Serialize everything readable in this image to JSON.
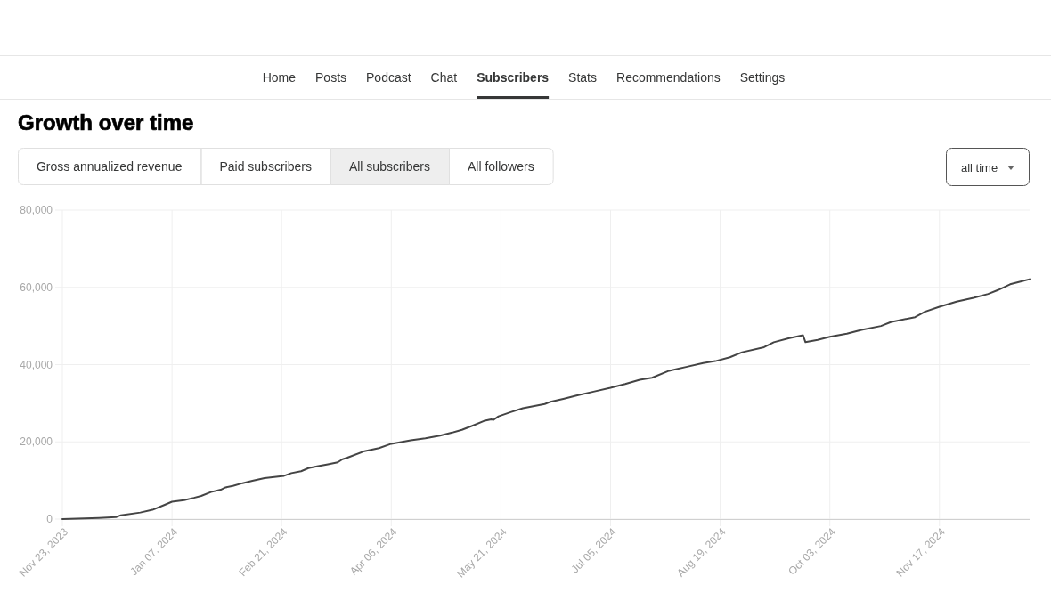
{
  "chart_data": {
    "type": "line",
    "title": "Growth over time",
    "annotations": [
      "Home",
      "Posts",
      "Podcast",
      "Chat",
      "Subscribers",
      "Stats",
      "Recommendations",
      "Settings",
      "Gross annualized revenue",
      "Paid subscribers",
      "All subscribers",
      "All followers",
      "all time"
    ],
    "x": [
      "2023-11-23",
      "2023-12-08",
      "2023-12-15",
      "2023-12-17",
      "2023-12-25",
      "2023-12-30",
      "2024-01-04",
      "2024-01-07",
      "2024-01-12",
      "2024-01-16",
      "2024-01-19",
      "2024-01-23",
      "2024-01-27",
      "2024-01-29",
      "2024-02-01",
      "2024-02-05",
      "2024-02-09",
      "2024-02-14",
      "2024-02-18",
      "2024-02-22",
      "2024-02-25",
      "2024-02-29",
      "2024-03-03",
      "2024-03-07",
      "2024-03-11",
      "2024-03-15",
      "2024-03-17",
      "2024-03-19",
      "2024-03-26",
      "2024-04-01",
      "2024-04-06",
      "2024-04-14",
      "2024-04-20",
      "2024-04-26",
      "2024-05-01",
      "2024-05-05",
      "2024-05-09",
      "2024-05-14",
      "2024-05-17",
      "2024-05-18",
      "2024-05-20",
      "2024-05-25",
      "2024-05-30",
      "2024-06-08",
      "2024-06-10",
      "2024-06-16",
      "2024-06-21",
      "2024-06-28",
      "2024-07-05",
      "2024-07-11",
      "2024-07-17",
      "2024-07-22",
      "2024-07-29",
      "2024-08-05",
      "2024-08-12",
      "2024-08-17",
      "2024-08-23",
      "2024-08-28",
      "2024-09-06",
      "2024-09-10",
      "2024-09-16",
      "2024-09-22",
      "2024-09-23",
      "2024-09-28",
      "2024-10-03",
      "2024-10-10",
      "2024-10-16",
      "2024-10-24",
      "2024-10-28",
      "2024-11-07",
      "2024-11-11",
      "2024-11-17",
      "2024-11-24",
      "2024-12-01",
      "2024-12-07",
      "2024-12-11",
      "2024-12-16",
      "2024-12-21",
      "2024-12-24"
    ],
    "series": [
      {
        "color": "#444444",
        "values": [
          0,
          300,
          500,
          1000,
          1700,
          2400,
          3700,
          4500,
          4900,
          5500,
          6000,
          7000,
          7600,
          8200,
          8600,
          9300,
          9900,
          10600,
          10900,
          11200,
          11900,
          12400,
          13200,
          13700,
          14200,
          14700,
          15500,
          15900,
          17600,
          18400,
          19500,
          20400,
          20900,
          21600,
          22400,
          23100,
          24100,
          25400,
          25800,
          25700,
          26600,
          27700,
          28700,
          29800,
          30300,
          31200,
          32000,
          33000,
          34000,
          35000,
          36100,
          36600,
          38400,
          39400,
          40400,
          40900,
          41900,
          43200,
          44500,
          45800,
          46800,
          47600,
          45800,
          46400,
          47200,
          48000,
          49000,
          50000,
          51000,
          52300,
          53700,
          55000,
          56300,
          57300,
          58300,
          59300,
          60800,
          61600,
          62100
        ]
      }
    ],
    "xlim": [
      "2023-11-23",
      "2024-12-24"
    ],
    "xticks": [
      {
        "value": "2023-11-23",
        "label": "Nov 23, 2023"
      },
      {
        "value": "2024-01-07",
        "label": "Jan 07, 2024"
      },
      {
        "value": "2024-02-21",
        "label": "Feb 21, 2024"
      },
      {
        "value": "2024-04-06",
        "label": "Apr 06, 2024"
      },
      {
        "value": "2024-05-21",
        "label": "May 21, 2024"
      },
      {
        "value": "2024-07-05",
        "label": "Jul 05, 2024"
      },
      {
        "value": "2024-08-19",
        "label": "Aug 19, 2024"
      },
      {
        "value": "2024-10-03",
        "label": "Oct 03, 2024"
      },
      {
        "value": "2024-11-17",
        "label": "Nov 17, 2024"
      }
    ],
    "ylim": [
      0,
      80000
    ],
    "yticks": [
      0,
      {
        "value": 20000,
        "label": "20,000"
      },
      {
        "value": 40000,
        "label": "40,000"
      },
      {
        "value": 60000,
        "label": "60,000"
      },
      {
        "value": 80000,
        "label": "80,000"
      }
    ],
    "grid": true
  }
}
